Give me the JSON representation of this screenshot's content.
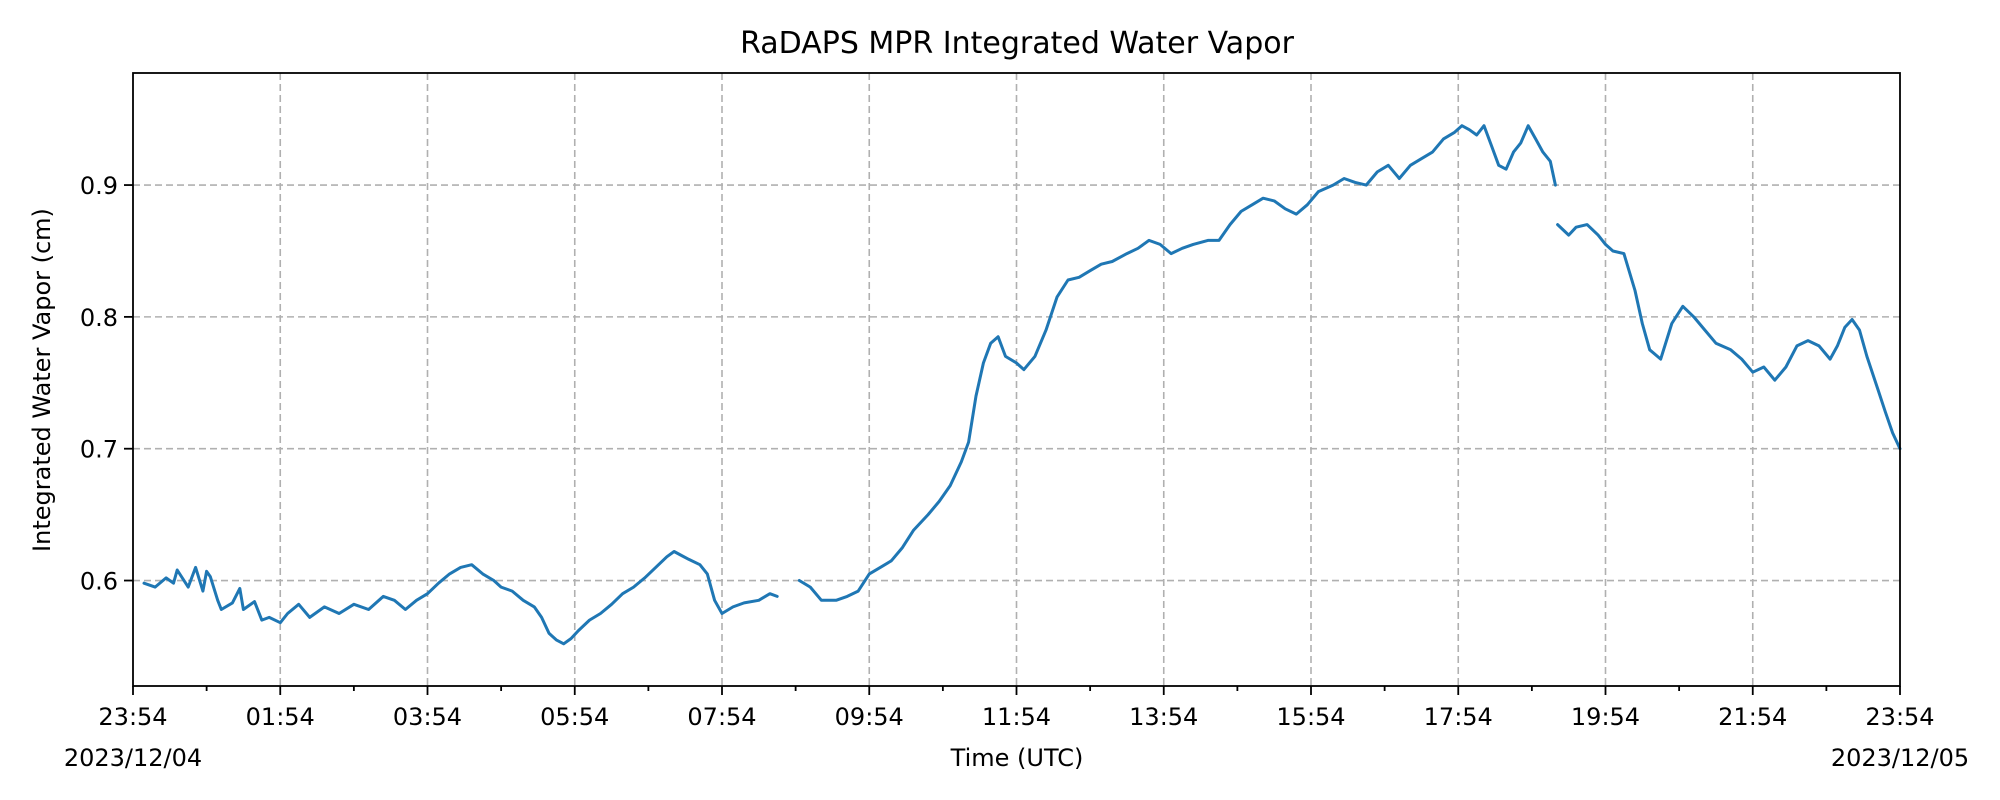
{
  "chart_data": {
    "type": "line",
    "title": "RaDAPS MPR Integrated Water Vapor",
    "xlabel": "Time (UTC)",
    "ylabel": "Integrated Water Vapor (cm)",
    "x_tick_labels": [
      "23:54",
      "01:54",
      "03:54",
      "05:54",
      "07:54",
      "09:54",
      "11:54",
      "13:54",
      "15:54",
      "17:54",
      "19:54",
      "21:54",
      "23:54"
    ],
    "x_date_labels": {
      "start": "2023/12/04",
      "end": "2023/12/05"
    },
    "x_tick_hours": [
      0,
      2,
      4,
      6,
      8,
      10,
      12,
      14,
      16,
      18,
      20,
      22,
      24
    ],
    "x_minor_hours": [
      1,
      3,
      5,
      7,
      9,
      11,
      13,
      15,
      17,
      19,
      21,
      23
    ],
    "xlim": [
      0,
      24
    ],
    "ylim": [
      0.52,
      0.985
    ],
    "y_ticks": [
      0.6,
      0.7,
      0.8,
      0.9
    ],
    "y_tick_labels": [
      "0.6",
      "0.7",
      "0.8",
      "0.9"
    ],
    "grid": true,
    "series": [
      {
        "color": "#1f77b4",
        "segments": [
          [
            [
              0.15,
              0.598
            ],
            [
              0.3,
              0.595
            ],
            [
              0.45,
              0.602
            ],
            [
              0.55,
              0.598
            ],
            [
              0.6,
              0.608
            ],
            [
              0.75,
              0.595
            ],
            [
              0.85,
              0.61
            ],
            [
              0.95,
              0.592
            ],
            [
              1.0,
              0.607
            ],
            [
              1.05,
              0.603
            ],
            [
              1.15,
              0.585
            ],
            [
              1.2,
              0.578
            ],
            [
              1.35,
              0.583
            ],
            [
              1.45,
              0.594
            ],
            [
              1.5,
              0.578
            ],
            [
              1.65,
              0.584
            ],
            [
              1.75,
              0.57
            ],
            [
              1.85,
              0.572
            ],
            [
              2.0,
              0.568
            ],
            [
              2.1,
              0.575
            ],
            [
              2.25,
              0.582
            ],
            [
              2.4,
              0.572
            ],
            [
              2.6,
              0.58
            ],
            [
              2.8,
              0.575
            ],
            [
              3.0,
              0.582
            ],
            [
              3.2,
              0.578
            ],
            [
              3.4,
              0.588
            ],
            [
              3.55,
              0.585
            ],
            [
              3.7,
              0.578
            ],
            [
              3.85,
              0.585
            ],
            [
              4.0,
              0.59
            ],
            [
              4.15,
              0.598
            ],
            [
              4.3,
              0.605
            ],
            [
              4.45,
              0.61
            ],
            [
              4.6,
              0.612
            ],
            [
              4.75,
              0.605
            ],
            [
              4.9,
              0.6
            ],
            [
              5.0,
              0.595
            ],
            [
              5.15,
              0.592
            ],
            [
              5.3,
              0.585
            ],
            [
              5.45,
              0.58
            ],
            [
              5.55,
              0.572
            ],
            [
              5.65,
              0.56
            ],
            [
              5.75,
              0.555
            ],
            [
              5.85,
              0.552
            ],
            [
              5.95,
              0.556
            ],
            [
              6.05,
              0.562
            ],
            [
              6.2,
              0.57
            ],
            [
              6.35,
              0.575
            ],
            [
              6.5,
              0.582
            ],
            [
              6.65,
              0.59
            ],
            [
              6.8,
              0.595
            ],
            [
              6.95,
              0.602
            ],
            [
              7.1,
              0.61
            ],
            [
              7.25,
              0.618
            ],
            [
              7.35,
              0.622
            ],
            [
              7.45,
              0.619
            ],
            [
              7.55,
              0.616
            ],
            [
              7.7,
              0.612
            ],
            [
              7.8,
              0.605
            ],
            [
              7.9,
              0.585
            ],
            [
              8.0,
              0.575
            ],
            [
              8.15,
              0.58
            ],
            [
              8.3,
              0.583
            ],
            [
              8.5,
              0.585
            ],
            [
              8.65,
              0.59
            ],
            [
              8.75,
              0.588
            ]
          ],
          [
            [
              9.05,
              0.6
            ],
            [
              9.2,
              0.595
            ],
            [
              9.35,
              0.585
            ],
            [
              9.55,
              0.585
            ],
            [
              9.7,
              0.588
            ],
            [
              9.85,
              0.592
            ],
            [
              10.0,
              0.605
            ],
            [
              10.15,
              0.61
            ],
            [
              10.3,
              0.615
            ],
            [
              10.45,
              0.625
            ],
            [
              10.6,
              0.638
            ],
            [
              10.8,
              0.65
            ],
            [
              10.95,
              0.66
            ],
            [
              11.1,
              0.672
            ],
            [
              11.25,
              0.69
            ],
            [
              11.35,
              0.705
            ],
            [
              11.45,
              0.74
            ],
            [
              11.55,
              0.765
            ],
            [
              11.65,
              0.78
            ],
            [
              11.75,
              0.785
            ],
            [
              11.85,
              0.77
            ],
            [
              12.0,
              0.765
            ],
            [
              12.1,
              0.76
            ],
            [
              12.25,
              0.77
            ],
            [
              12.4,
              0.79
            ],
            [
              12.55,
              0.815
            ],
            [
              12.7,
              0.828
            ],
            [
              12.85,
              0.83
            ],
            [
              13.0,
              0.835
            ],
            [
              13.15,
              0.84
            ],
            [
              13.3,
              0.842
            ],
            [
              13.5,
              0.848
            ],
            [
              13.65,
              0.852
            ],
            [
              13.8,
              0.858
            ],
            [
              13.95,
              0.855
            ],
            [
              14.1,
              0.848
            ],
            [
              14.25,
              0.852
            ],
            [
              14.4,
              0.855
            ],
            [
              14.6,
              0.858
            ],
            [
              14.75,
              0.858
            ],
            [
              14.9,
              0.87
            ],
            [
              15.05,
              0.88
            ],
            [
              15.2,
              0.885
            ],
            [
              15.35,
              0.89
            ],
            [
              15.5,
              0.888
            ],
            [
              15.65,
              0.882
            ],
            [
              15.8,
              0.878
            ],
            [
              15.95,
              0.885
            ],
            [
              16.1,
              0.895
            ],
            [
              16.3,
              0.9
            ],
            [
              16.45,
              0.905
            ],
            [
              16.6,
              0.902
            ],
            [
              16.75,
              0.9
            ],
            [
              16.9,
              0.91
            ],
            [
              17.05,
              0.915
            ],
            [
              17.2,
              0.905
            ],
            [
              17.35,
              0.915
            ],
            [
              17.5,
              0.92
            ],
            [
              17.65,
              0.925
            ],
            [
              17.8,
              0.935
            ],
            [
              17.95,
              0.94
            ],
            [
              18.05,
              0.945
            ],
            [
              18.15,
              0.942
            ],
            [
              18.25,
              0.938
            ],
            [
              18.35,
              0.945
            ],
            [
              18.45,
              0.93
            ],
            [
              18.55,
              0.915
            ],
            [
              18.65,
              0.912
            ],
            [
              18.75,
              0.925
            ],
            [
              18.85,
              0.932
            ],
            [
              18.95,
              0.945
            ],
            [
              19.05,
              0.935
            ],
            [
              19.15,
              0.925
            ],
            [
              19.25,
              0.918
            ],
            [
              19.32,
              0.9
            ]
          ],
          [
            [
              19.35,
              0.87
            ],
            [
              19.5,
              0.862
            ],
            [
              19.6,
              0.868
            ],
            [
              19.75,
              0.87
            ],
            [
              19.9,
              0.862
            ],
            [
              20.0,
              0.855
            ],
            [
              20.1,
              0.85
            ],
            [
              20.25,
              0.848
            ],
            [
              20.4,
              0.82
            ],
            [
              20.5,
              0.795
            ],
            [
              20.6,
              0.775
            ],
            [
              20.75,
              0.768
            ],
            [
              20.9,
              0.795
            ],
            [
              21.05,
              0.808
            ],
            [
              21.2,
              0.8
            ],
            [
              21.35,
              0.79
            ],
            [
              21.5,
              0.78
            ],
            [
              21.7,
              0.775
            ],
            [
              21.85,
              0.768
            ],
            [
              22.0,
              0.758
            ],
            [
              22.15,
              0.762
            ],
            [
              22.3,
              0.752
            ],
            [
              22.45,
              0.762
            ],
            [
              22.6,
              0.778
            ],
            [
              22.75,
              0.782
            ],
            [
              22.9,
              0.778
            ],
            [
              23.05,
              0.768
            ],
            [
              23.15,
              0.778
            ],
            [
              23.25,
              0.792
            ],
            [
              23.35,
              0.798
            ],
            [
              23.45,
              0.79
            ],
            [
              23.55,
              0.77
            ],
            [
              23.7,
              0.745
            ],
            [
              23.8,
              0.728
            ],
            [
              23.9,
              0.712
            ],
            [
              24.0,
              0.7
            ]
          ]
        ]
      }
    ]
  }
}
